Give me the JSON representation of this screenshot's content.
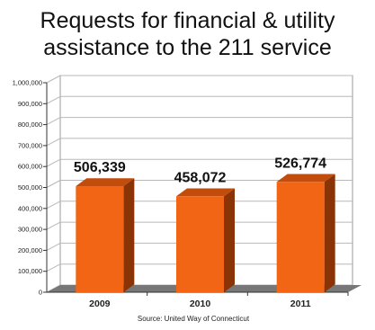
{
  "chart_data": {
    "type": "bar",
    "title_lines": [
      "Requests for financial & utility",
      "assistance to the 211 service"
    ],
    "categories": [
      "2009",
      "2010",
      "2011"
    ],
    "values": [
      506339,
      458072,
      526774
    ],
    "data_labels": [
      "506,339",
      "458,072",
      "526,774"
    ],
    "y_ticks": [
      "0",
      "100,000",
      "200,000",
      "300,000",
      "400,000",
      "500,000",
      "600,000",
      "700,000",
      "800,000",
      "900,000",
      "1,000,000"
    ],
    "ylim": [
      0,
      1000000
    ],
    "grid": true,
    "source": "Source: United Way of Connecticut",
    "colors": {
      "bar_front": "#f16514",
      "bar_side": "#8a3306",
      "bar_top": "#c24c0c",
      "floor": "#777777",
      "grid": "#b8b8b8"
    }
  }
}
